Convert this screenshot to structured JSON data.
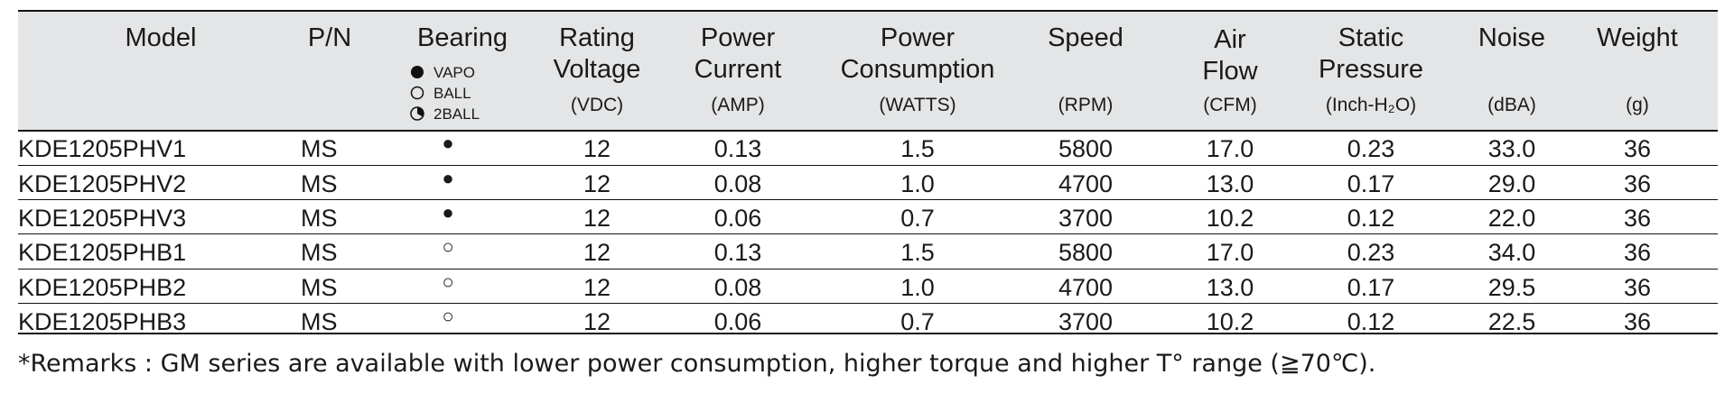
{
  "header": {
    "columns": [
      {
        "title": [
          "Model"
        ]
      },
      {
        "title": [
          "P/N"
        ]
      },
      {
        "title": [
          "Bearing"
        ],
        "legend": [
          "VAPO",
          "BALL",
          "2BALL"
        ]
      },
      {
        "title": [
          "Rating",
          "Voltage"
        ],
        "unit": "(VDC)"
      },
      {
        "title": [
          "Power",
          "Current"
        ],
        "unit": "(AMP)"
      },
      {
        "title": [
          "Power",
          "Consumption"
        ],
        "unit": "(WATTS)"
      },
      {
        "title": [
          "Speed"
        ],
        "unit": "(RPM)"
      },
      {
        "title": [
          "Air",
          "Flow"
        ],
        "unit": "(CFM)"
      },
      {
        "title": [
          "Static",
          "Pressure"
        ],
        "unit": "(Inch-H₂O)"
      },
      {
        "title": [
          "Noise"
        ],
        "unit": "(dBA)"
      },
      {
        "title": [
          "Weight"
        ],
        "unit": "(g)"
      }
    ]
  },
  "table": {
    "rows": [
      [
        "KDE1205PHV1",
        "MS",
        "●",
        "12",
        "0.13",
        "1.5",
        "5800",
        "17.0",
        "0.23",
        "33.0",
        "36"
      ],
      [
        "KDE1205PHV2",
        "MS",
        "●",
        "12",
        "0.08",
        "1.0",
        "4700",
        "13.0",
        "0.17",
        "29.0",
        "36"
      ],
      [
        "KDE1205PHV3",
        "MS",
        "●",
        "12",
        "0.06",
        "0.7",
        "3700",
        "10.2",
        "0.12",
        "22.0",
        "36"
      ],
      [
        "KDE1205PHB1",
        "MS",
        "○",
        "12",
        "0.13",
        "1.5",
        "5800",
        "17.0",
        "0.23",
        "34.0",
        "36"
      ],
      [
        "KDE1205PHB2",
        "MS",
        "○",
        "12",
        "0.08",
        "1.0",
        "4700",
        "13.0",
        "0.17",
        "29.5",
        "36"
      ],
      [
        "KDE1205PHB3",
        "MS",
        "○",
        "12",
        "0.06",
        "0.7",
        "3700",
        "10.2",
        "0.12",
        "22.5",
        "36"
      ]
    ]
  },
  "remark": "*Remarks : GM series are available with lower power consumption, higher torque and higher T° range (≧70℃)."
}
